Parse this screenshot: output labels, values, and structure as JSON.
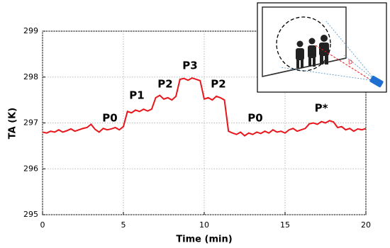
{
  "chart_data": {
    "type": "line",
    "x_label": "Time (min)",
    "y_label": "TA (K)",
    "x": [
      0,
      0.25,
      0.5,
      0.75,
      1,
      1.25,
      1.5,
      1.75,
      2,
      2.25,
      2.5,
      2.75,
      3,
      3.25,
      3.5,
      3.75,
      4,
      4.25,
      4.5,
      4.75,
      5,
      5.25,
      5.5,
      5.75,
      6,
      6.25,
      6.5,
      6.75,
      7,
      7.25,
      7.5,
      7.75,
      8,
      8.25,
      8.5,
      8.75,
      9,
      9.25,
      9.5,
      9.75,
      10,
      10.25,
      10.5,
      10.75,
      11,
      11.25,
      11.5,
      11.75,
      12,
      12.25,
      12.5,
      12.75,
      13,
      13.25,
      13.5,
      13.75,
      14,
      14.25,
      14.5,
      14.75,
      15,
      15.25,
      15.5,
      15.75,
      16,
      16.25,
      16.5,
      16.75,
      17,
      17.25,
      17.5,
      17.75,
      18,
      18.25,
      18.5,
      18.75,
      19,
      19.25,
      19.5,
      19.75,
      20
    ],
    "series": [
      {
        "color": "#e8161c",
        "values": [
          296.8,
          296.78,
          296.82,
          296.8,
          296.85,
          296.8,
          296.83,
          296.87,
          296.82,
          296.85,
          296.88,
          296.9,
          296.97,
          296.86,
          296.8,
          296.88,
          296.85,
          296.87,
          296.9,
          296.85,
          296.92,
          297.25,
          297.22,
          297.28,
          297.25,
          297.3,
          297.26,
          297.3,
          297.55,
          297.6,
          297.52,
          297.55,
          297.5,
          297.58,
          297.95,
          297.97,
          297.93,
          297.98,
          297.95,
          297.92,
          297.52,
          297.55,
          297.5,
          297.58,
          297.55,
          297.5,
          296.82,
          296.78,
          296.75,
          296.8,
          296.72,
          296.78,
          296.75,
          296.8,
          296.77,
          296.82,
          296.78,
          296.85,
          296.8,
          296.82,
          296.78,
          296.85,
          296.88,
          296.82,
          296.85,
          296.88,
          296.98,
          297.0,
          296.97,
          297.03,
          297.0,
          297.05,
          297.02,
          296.9,
          296.92,
          296.85,
          296.88,
          296.82,
          296.87,
          296.85,
          296.88
        ]
      }
    ],
    "xlim": [
      0,
      20
    ],
    "xticks": [
      0,
      5,
      10,
      15,
      20
    ],
    "ylim": [
      295,
      299
    ],
    "yticks": [
      295,
      296,
      297,
      298,
      299
    ],
    "grid": true,
    "annotations": [
      "P0",
      "P1",
      "P2",
      "P3",
      "P2",
      "P0",
      "P*"
    ],
    "inset": {
      "label": "D"
    }
  }
}
